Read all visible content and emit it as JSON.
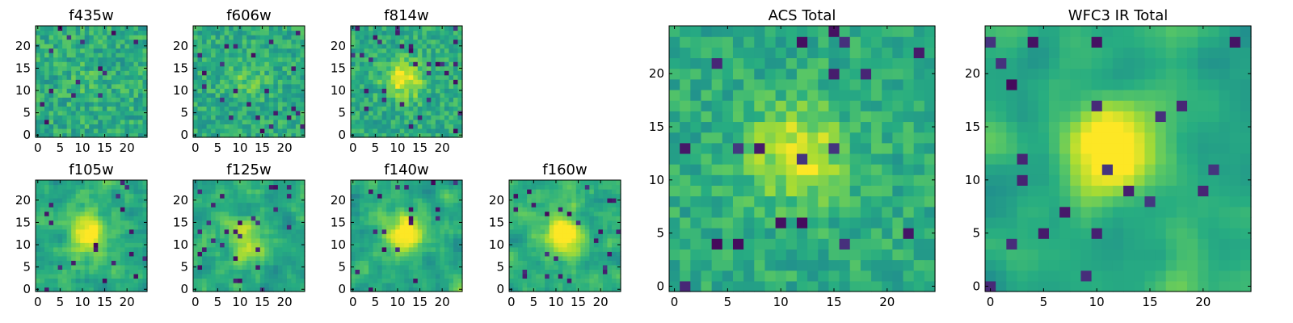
{
  "figure": {
    "description_free": true
  },
  "chart_data": [
    {
      "type": "heatmap",
      "title": "f435w",
      "grid_size": 25,
      "xlim": [
        0,
        24
      ],
      "ylim": [
        0,
        24
      ],
      "xticks": [
        0,
        5,
        10,
        15,
        20
      ],
      "yticks": [
        0,
        5,
        10,
        15,
        20
      ],
      "xlabel": "",
      "ylabel": "",
      "colormap": "viridis",
      "signal": 0.05,
      "noise": 0.5,
      "smooth": 0,
      "seed": 11
    },
    {
      "type": "heatmap",
      "title": "f606w",
      "grid_size": 25,
      "xlim": [
        0,
        24
      ],
      "ylim": [
        0,
        24
      ],
      "xticks": [
        0,
        5,
        10,
        15,
        20
      ],
      "yticks": [
        0,
        5,
        10,
        15,
        20
      ],
      "xlabel": "",
      "ylabel": "",
      "colormap": "viridis",
      "signal": 0.12,
      "noise": 0.45,
      "smooth": 0,
      "seed": 22
    },
    {
      "type": "heatmap",
      "title": "f814w",
      "grid_size": 25,
      "xlim": [
        0,
        24
      ],
      "ylim": [
        0,
        24
      ],
      "xticks": [
        0,
        5,
        10,
        15,
        20
      ],
      "yticks": [
        0,
        5,
        10,
        15,
        20
      ],
      "xlabel": "",
      "ylabel": "",
      "colormap": "viridis",
      "signal": 0.35,
      "noise": 0.45,
      "smooth": 0,
      "seed": 33
    },
    {
      "type": "heatmap",
      "title": "f105w",
      "grid_size": 25,
      "xlim": [
        0,
        24
      ],
      "ylim": [
        0,
        24
      ],
      "xticks": [
        0,
        5,
        10,
        15,
        20
      ],
      "yticks": [
        0,
        5,
        10,
        15,
        20
      ],
      "xlabel": "",
      "ylabel": "",
      "colormap": "viridis",
      "signal": 0.4,
      "noise": 0.55,
      "smooth": 1,
      "seed": 44
    },
    {
      "type": "heatmap",
      "title": "f125w",
      "grid_size": 25,
      "xlim": [
        0,
        24
      ],
      "ylim": [
        0,
        24
      ],
      "xticks": [
        0,
        5,
        10,
        15,
        20
      ],
      "yticks": [
        0,
        5,
        10,
        15,
        20
      ],
      "xlabel": "",
      "ylabel": "",
      "colormap": "viridis",
      "signal": 0.3,
      "noise": 0.55,
      "smooth": 1,
      "seed": 55
    },
    {
      "type": "heatmap",
      "title": "f140w",
      "grid_size": 25,
      "xlim": [
        0,
        24
      ],
      "ylim": [
        0,
        24
      ],
      "xticks": [
        0,
        5,
        10,
        15,
        20
      ],
      "yticks": [
        0,
        5,
        10,
        15,
        20
      ],
      "xlabel": "",
      "ylabel": "",
      "colormap": "viridis",
      "signal": 0.45,
      "noise": 0.55,
      "smooth": 1,
      "seed": 66
    },
    {
      "type": "heatmap",
      "title": "f160w",
      "grid_size": 25,
      "xlim": [
        0,
        24
      ],
      "ylim": [
        0,
        24
      ],
      "xticks": [
        0,
        5,
        10,
        15,
        20
      ],
      "yticks": [
        0,
        5,
        10,
        15,
        20
      ],
      "xlabel": "",
      "ylabel": "",
      "colormap": "viridis",
      "signal": 0.45,
      "noise": 0.5,
      "smooth": 1,
      "seed": 77
    },
    {
      "type": "heatmap",
      "title": "ACS Total",
      "grid_size": 25,
      "xlim": [
        0,
        24
      ],
      "ylim": [
        0,
        24
      ],
      "xticks": [
        0,
        5,
        10,
        15,
        20
      ],
      "yticks": [
        0,
        5,
        10,
        15,
        20
      ],
      "xlabel": "",
      "ylabel": "",
      "colormap": "viridis",
      "signal": 0.35,
      "noise": 0.4,
      "smooth": 0,
      "seed": 88
    },
    {
      "type": "heatmap",
      "title": "WFC3 IR Total",
      "grid_size": 25,
      "xlim": [
        0,
        24
      ],
      "ylim": [
        0,
        24
      ],
      "xticks": [
        0,
        5,
        10,
        15,
        20
      ],
      "yticks": [
        0,
        5,
        10,
        15,
        20
      ],
      "xlabel": "",
      "ylabel": "",
      "colormap": "viridis",
      "signal": 0.55,
      "noise": 0.35,
      "smooth": 2,
      "seed": 99
    }
  ]
}
